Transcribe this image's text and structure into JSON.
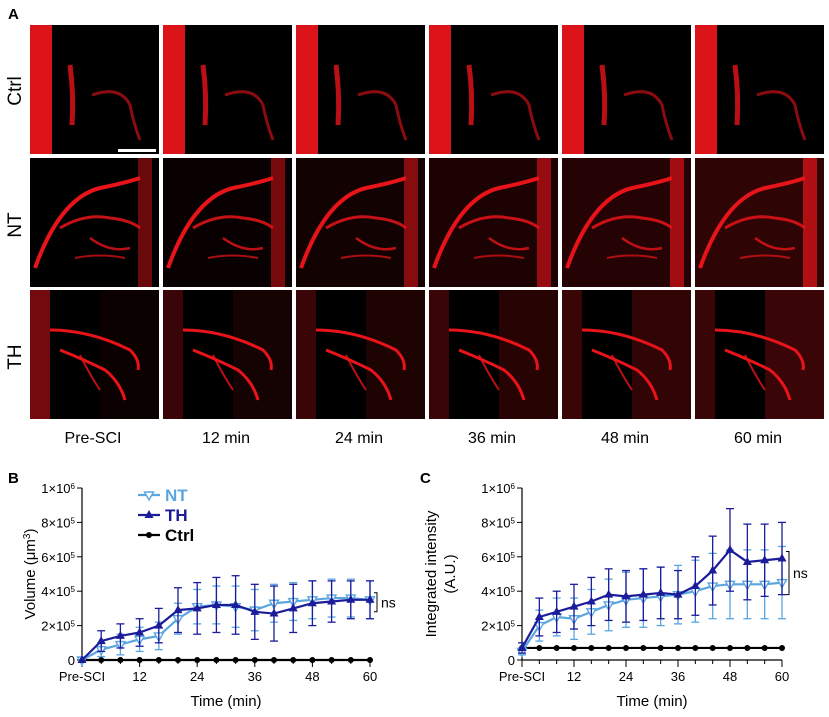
{
  "panel_a": {
    "letter": "A",
    "rows": [
      "Ctrl",
      "NT",
      "TH"
    ],
    "columns": [
      "Pre-SCI",
      "12 min",
      "24 min",
      "36 min",
      "48 min",
      "60 min"
    ],
    "image_color": "#e8141a",
    "background_color": "#000000"
  },
  "chart_data": [
    {
      "panel": "B",
      "type": "line",
      "xlabel": "Time (min)",
      "ylabel": "Volume (μm³)",
      "x": [
        0,
        4,
        8,
        12,
        16,
        20,
        24,
        28,
        32,
        36,
        40,
        44,
        48,
        52,
        56,
        60
      ],
      "xticks": [
        "Pre-SCI",
        "12",
        "24",
        "36",
        "48",
        "60"
      ],
      "xtick_values": [
        0,
        12,
        24,
        36,
        48,
        60
      ],
      "ylim": [
        0,
        1000000
      ],
      "yticks": [
        "0",
        "2×10⁵",
        "4×10⁵",
        "6×10⁵",
        "8×10⁵",
        "1×10⁶"
      ],
      "ytick_values": [
        0,
        200000,
        400000,
        600000,
        800000,
        1000000
      ],
      "annotation": "ns",
      "series": [
        {
          "name": "NT",
          "color": "#5aa6df",
          "marker": "triangle-down",
          "values": [
            0,
            60000,
            90000,
            120000,
            140000,
            240000,
            310000,
            320000,
            310000,
            290000,
            330000,
            340000,
            350000,
            360000,
            360000,
            350000
          ],
          "errors": [
            0,
            40000,
            60000,
            70000,
            80000,
            90000,
            100000,
            110000,
            120000,
            120000,
            110000,
            110000,
            110000,
            110000,
            110000,
            110000
          ]
        },
        {
          "name": "TH",
          "color": "#1c1c9a",
          "marker": "triangle-up",
          "values": [
            0,
            110000,
            140000,
            160000,
            200000,
            290000,
            300000,
            320000,
            320000,
            280000,
            270000,
            300000,
            330000,
            340000,
            350000,
            350000
          ],
          "errors": [
            0,
            60000,
            70000,
            80000,
            100000,
            130000,
            150000,
            160000,
            170000,
            160000,
            160000,
            140000,
            130000,
            120000,
            110000,
            110000
          ]
        },
        {
          "name": "Ctrl",
          "color": "#000000",
          "marker": "circle",
          "values": [
            0,
            0,
            0,
            0,
            0,
            0,
            0,
            0,
            0,
            0,
            0,
            0,
            0,
            0,
            0,
            0
          ],
          "errors": []
        }
      ]
    },
    {
      "panel": "C",
      "type": "line",
      "xlabel": "Time (min)",
      "ylabel": "Integrated intensity (A.U.)",
      "x": [
        0,
        4,
        8,
        12,
        16,
        20,
        24,
        28,
        32,
        36,
        40,
        44,
        48,
        52,
        56,
        60
      ],
      "xticks": [
        "Pre-SCI",
        "12",
        "24",
        "36",
        "48",
        "60"
      ],
      "xtick_values": [
        0,
        12,
        24,
        36,
        48,
        60
      ],
      "ylim": [
        0,
        1000000
      ],
      "yticks": [
        "0",
        "2×10⁵",
        "4×10⁵",
        "6×10⁵",
        "8×10⁵",
        "1×10⁶"
      ],
      "ytick_values": [
        0,
        200000,
        400000,
        600000,
        800000,
        1000000
      ],
      "annotation": "ns",
      "series": [
        {
          "name": "NT",
          "color": "#5aa6df",
          "marker": "triangle-down",
          "values": [
            50000,
            200000,
            250000,
            240000,
            280000,
            320000,
            350000,
            360000,
            370000,
            380000,
            400000,
            430000,
            440000,
            440000,
            440000,
            450000
          ],
          "errors": [
            20000,
            90000,
            110000,
            120000,
            130000,
            150000,
            160000,
            170000,
            170000,
            170000,
            180000,
            190000,
            200000,
            200000,
            200000,
            210000
          ]
        },
        {
          "name": "TH",
          "color": "#1c1c9a",
          "marker": "triangle-up",
          "values": [
            70000,
            250000,
            280000,
            310000,
            340000,
            380000,
            370000,
            380000,
            390000,
            380000,
            430000,
            520000,
            640000,
            570000,
            580000,
            590000
          ],
          "errors": [
            30000,
            110000,
            120000,
            130000,
            140000,
            150000,
            150000,
            150000,
            150000,
            140000,
            170000,
            200000,
            240000,
            220000,
            210000,
            210000
          ]
        },
        {
          "name": "Ctrl",
          "color": "#000000",
          "marker": "circle",
          "values": [
            70000,
            70000,
            70000,
            70000,
            70000,
            70000,
            70000,
            70000,
            70000,
            70000,
            70000,
            70000,
            70000,
            70000,
            70000,
            70000
          ],
          "errors": []
        }
      ]
    }
  ]
}
